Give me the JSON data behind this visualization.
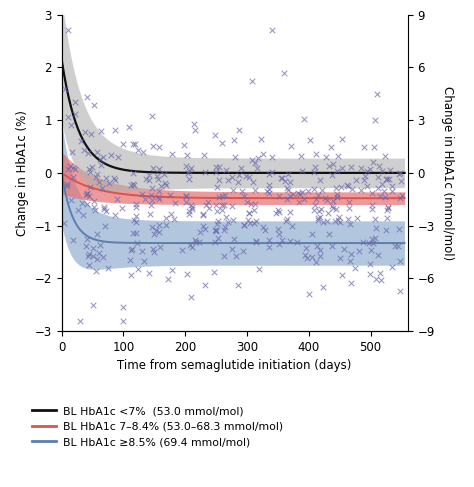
{
  "xlabel": "Time from semaglutide initiation (days)",
  "ylabel_left": "Change in HbA1c (%)",
  "ylabel_right": "Change in HbA1c (mmol/mol)",
  "xlim": [
    0,
    560
  ],
  "ylim_left": [
    -3,
    3
  ],
  "ylim_right": [
    -9,
    9
  ],
  "xticks": [
    0,
    100,
    200,
    300,
    400,
    500
  ],
  "yticks_left": [
    -3,
    -2,
    -1,
    0,
    1,
    2,
    3
  ],
  "yticks_right": [
    -9,
    -6,
    -3,
    0,
    3,
    6,
    9
  ],
  "curve_color_black": "#111111",
  "curve_color_red": "#d9534f",
  "curve_color_blue": "#5b7faf",
  "band_color_black": "#b0b0b0",
  "band_color_red": "#e87070",
  "band_color_blue": "#7fa0c8",
  "scatter_color": "#6666aa",
  "legend_labels": [
    "BL HbA1c <7%  (53.0 mmol/mol)",
    "BL HbA1c 7–8.4% (53.0–68.3 mmol/mol)",
    "BL HbA1c ≥8.5% (69.4 mmol/mol)"
  ],
  "black_asymptote": 0.0,
  "black_start": 2.15,
  "black_tau": 28,
  "black_ci_width_start": 0.9,
  "black_ci_width_end": 0.28,
  "black_ci_tau": 50,
  "red_asymptote": -0.48,
  "red_start": 0.0,
  "red_tau": 55,
  "red_ci_width_start": 0.28,
  "red_ci_width_end": 0.12,
  "red_ci_tau": 60,
  "blue_asymptote": -1.33,
  "blue_start": 0.0,
  "blue_tau": 18,
  "blue_ci_width_start": 0.55,
  "blue_ci_width_end": 0.42,
  "blue_ci_tau": 40
}
